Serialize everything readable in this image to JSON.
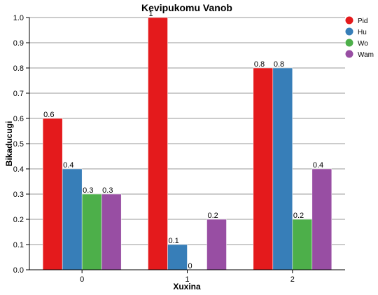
{
  "chart_data": {
    "type": "bar",
    "title": "Kevipukomu Vanob",
    "xlabel": "Xuxina",
    "ylabel": "Bikaducugi",
    "categories": [
      "0",
      "1",
      "2"
    ],
    "ylim": [
      0,
      1.0
    ],
    "yticks": [
      "0.0",
      "0.1",
      "0.2",
      "0.3",
      "0.4",
      "0.5",
      "0.6",
      "0.7",
      "0.8",
      "0.9",
      "1.0"
    ],
    "grid": true,
    "legend_position": "top-right",
    "series": [
      {
        "name": "Pid",
        "color": "#e41a1c",
        "values": [
          0.6,
          1,
          0.8
        ],
        "labels": [
          "0.6",
          "1",
          "0.8"
        ]
      },
      {
        "name": "Hu",
        "color": "#377eb8",
        "values": [
          0.4,
          0.1,
          0.8
        ],
        "labels": [
          "0.4",
          "0.1",
          "0.8"
        ]
      },
      {
        "name": "Wo",
        "color": "#4daf4a",
        "values": [
          0.3,
          0,
          0.2
        ],
        "labels": [
          "0.3",
          "0",
          "0.2"
        ]
      },
      {
        "name": "Wam",
        "color": "#984ea3",
        "values": [
          0.3,
          0.2,
          0.4
        ],
        "labels": [
          "0.3",
          "0.2",
          "0.4"
        ]
      }
    ]
  }
}
